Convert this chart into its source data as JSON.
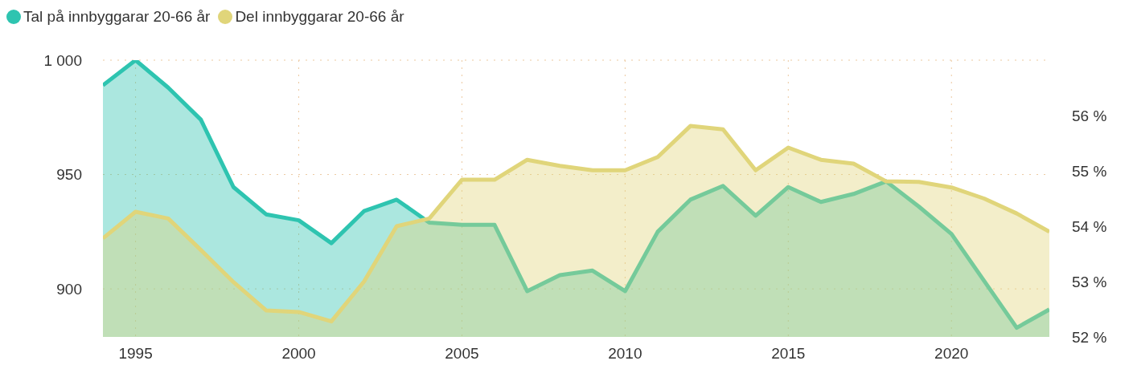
{
  "chart_data": {
    "type": "area",
    "x": [
      1994,
      1995,
      1996,
      1997,
      1998,
      1999,
      2000,
      2001,
      2002,
      2003,
      2004,
      2005,
      2006,
      2007,
      2008,
      2009,
      2010,
      2011,
      2012,
      2013,
      2014,
      2015,
      2016,
      2017,
      2018,
      2019,
      2020,
      2021,
      2022,
      2023
    ],
    "series": [
      {
        "name": "Tal på innbyggarar 20-66 år",
        "color": "#2ec4b0",
        "values": [
          989,
          1000,
          988,
          974,
          944.5,
          932.6,
          930,
          920,
          934,
          939,
          929,
          928,
          928,
          899,
          906,
          908,
          899,
          925,
          939,
          945,
          932,
          944.5,
          938,
          941.5,
          947,
          936,
          924,
          903.5,
          883,
          891
        ]
      },
      {
        "name": "Del innbyggarar 20-66 år",
        "color": "#e0d57a",
        "axis": "y2",
        "values": [
          53.78,
          54.26,
          54.14,
          53.57,
          52.99,
          52.48,
          52.45,
          52.28,
          53.0,
          54.0,
          54.14,
          54.84,
          54.84,
          55.2,
          55.09,
          55.01,
          55.01,
          55.25,
          55.81,
          55.75,
          55.01,
          55.42,
          55.2,
          55.13,
          54.81,
          54.8,
          54.7,
          54.5,
          54.23,
          53.9
        ]
      }
    ],
    "xlim": [
      1994,
      2023
    ],
    "xticks": [
      1995,
      2000,
      2005,
      2010,
      2015,
      2020
    ],
    "ylim": [
      879,
      1000
    ],
    "yticks": [
      900,
      950,
      {
        "value": 1000,
        "label": "1 000"
      }
    ],
    "y2lim": [
      52,
      57
    ],
    "y2ticks": [
      {
        "value": 52,
        "label": "52 %"
      },
      {
        "value": 53,
        "label": "53 %"
      },
      {
        "value": 54,
        "label": "54 %"
      },
      {
        "value": 55,
        "label": "55 %"
      },
      {
        "value": 56,
        "label": "56 %"
      }
    ],
    "grid": true,
    "legend": "top left",
    "line_style": "solid",
    "marker": "none"
  }
}
